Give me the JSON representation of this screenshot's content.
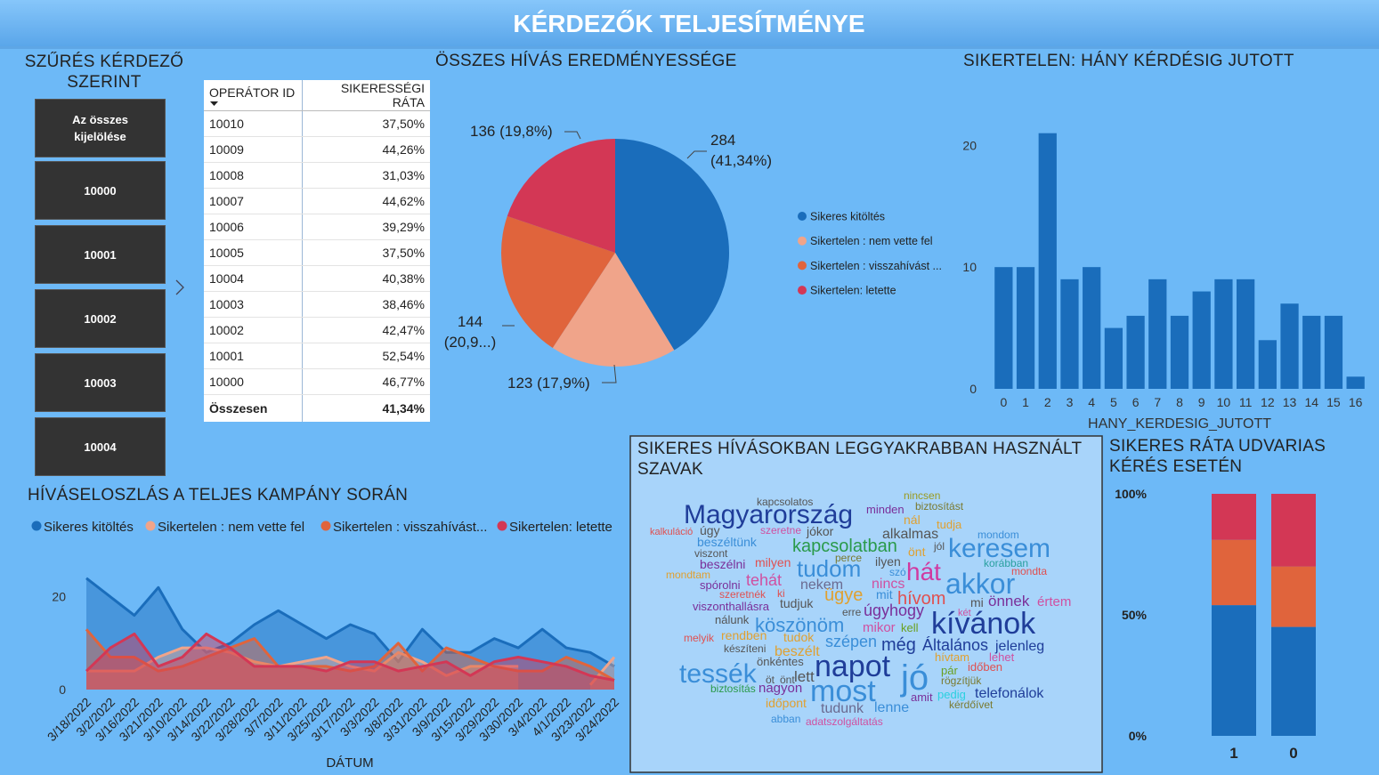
{
  "header": {
    "title": "KÉRDEZŐK TELJESÍTMÉNYE"
  },
  "slicer": {
    "title": "SZŰRÉS KÉRDEZŐ SZERINT",
    "items": [
      "Az összes kijelölése",
      "10000",
      "10001",
      "10002",
      "10003",
      "10004"
    ]
  },
  "table": {
    "columns": [
      "OPERÁTOR ID",
      "SIKERESSÉGI RÁTA"
    ],
    "rows": [
      [
        "10010",
        "37,50%"
      ],
      [
        "10009",
        "44,26%"
      ],
      [
        "10008",
        "31,03%"
      ],
      [
        "10007",
        "44,62%"
      ],
      [
        "10006",
        "39,29%"
      ],
      [
        "10005",
        "37,50%"
      ],
      [
        "10004",
        "40,38%"
      ],
      [
        "10003",
        "38,46%"
      ],
      [
        "10002",
        "42,47%"
      ],
      [
        "10001",
        "52,54%"
      ],
      [
        "10000",
        "46,77%"
      ]
    ],
    "total": [
      "Összesen",
      "41,34%"
    ]
  },
  "wordcloud": {
    "title": "SIKERES HÍVÁSOKBAN LEGGYAKRABBAN HASZNÁLT SZAVAK",
    "words": [
      "kapcsolatos",
      "nincsen",
      "biztosítást",
      "Magyarország",
      "minden",
      "tudja",
      "kalkuláció",
      "úgy",
      "nál",
      "mondom",
      "szeretne",
      "jókor",
      "alkalmas",
      "beszéltünk",
      "jól",
      "keresem",
      "kapcsolatban",
      "önt",
      "viszont",
      "perce",
      "ilyen",
      "korábban",
      "beszélni",
      "milyen",
      "tudom",
      "hát",
      "szó",
      "mondta",
      "mondtam",
      "tehát",
      "nekem",
      "nincs",
      "akkor",
      "spórolni",
      "szeretnék",
      "ki",
      "ügye",
      "mit",
      "hívom",
      "önnek",
      "értem",
      "mi",
      "viszonthallásra",
      "tudjuk",
      "két",
      "erre",
      "úgyhogy",
      "kívánok",
      "nálunk",
      "köszönöm",
      "mikor",
      "kell",
      "rendben",
      "tudok",
      "melyik",
      "szépen",
      "még",
      "Általános",
      "jelenleg",
      "készíteni",
      "beszélt",
      "önkéntes",
      "lett",
      "napot",
      "jó",
      "hívtam",
      "lehet",
      "tessék",
      "pár",
      "időben",
      "rögzítjük",
      "öt",
      "önt",
      "most",
      "biztosítás",
      "nagyon",
      "telefonálok",
      "amit",
      "pedig",
      "időpont",
      "tudunk",
      "lenne",
      "kérdőívet",
      "abban",
      "adatszolgáltatás"
    ]
  },
  "chart_data": [
    {
      "type": "pie",
      "title": "ÖSSZES HÍVÁS EREDMÉNYESSÉGE",
      "categories": [
        "Sikeres kitöltés",
        "Sikertelen : nem vette fel",
        "Sikertelen : visszahívást ...",
        "Sikertelen: letette"
      ],
      "values": [
        284,
        123,
        144,
        136
      ],
      "value_labels": [
        "284 (41,34%)",
        "123 (17,9%)",
        "144 (20,9...)",
        "136 (19,8%)"
      ],
      "colors": [
        "#1a6dbb",
        "#f0a48a",
        "#e0643c",
        "#d33755"
      ]
    },
    {
      "type": "bar",
      "title": "SIKERTELEN: HÁNY KÉRDÉSIG JUTOTT",
      "xlabel": "HANY_KERDESIG_JUTOTT",
      "categories": [
        0,
        1,
        2,
        3,
        4,
        5,
        6,
        7,
        8,
        9,
        10,
        11,
        12,
        13,
        14,
        15,
        16
      ],
      "values": [
        10,
        10,
        21,
        9,
        10,
        5,
        6,
        9,
        6,
        8,
        9,
        9,
        4,
        7,
        6,
        6,
        1
      ],
      "color": "#1a6dbb",
      "ylim": [
        0,
        22
      ],
      "yticks": [
        0,
        10,
        20
      ]
    },
    {
      "type": "area",
      "title": "HÍVÁSELOSZLÁS A TELJES KAMPÁNY SORÁN",
      "xlabel": "DÁTUM",
      "categories": [
        "3/18/2022",
        "3/2/2022",
        "3/16/2022",
        "3/21/2022",
        "3/10/2022",
        "3/14/2022",
        "3/22/2022",
        "3/28/2022",
        "3/7/2022",
        "3/11/2022",
        "3/25/2022",
        "3/17/2022",
        "3/3/2022",
        "3/8/2022",
        "3/31/2022",
        "3/9/2022",
        "3/15/2022",
        "3/29/2022",
        "3/30/2022",
        "3/4/2022",
        "4/1/2022",
        "3/23/2022",
        "3/24/2022"
      ],
      "series": [
        {
          "name": "Sikeres kitöltés",
          "color": "#1a6dbb",
          "values": [
            24,
            20,
            16,
            22,
            13,
            8,
            10,
            14,
            17,
            14,
            11,
            14,
            12,
            6,
            13,
            8,
            8,
            11,
            9,
            13,
            9,
            8,
            5
          ]
        },
        {
          "name": "Sikertelen : nem vette fel",
          "color": "#f0a48a",
          "values": [
            4,
            4,
            4,
            7,
            9,
            9,
            8,
            6,
            5,
            6,
            7,
            5,
            4,
            8,
            6,
            3,
            5,
            5,
            5,
            null,
            null,
            1,
            7
          ]
        },
        {
          "name": "Sikertelen : visszahívást...",
          "color": "#e0643c",
          "values": [
            13,
            7,
            7,
            4,
            5,
            7,
            9,
            11,
            5,
            5,
            5,
            4,
            5,
            10,
            4,
            9,
            7,
            5,
            4,
            4,
            7,
            5,
            2
          ]
        },
        {
          "name": "Sikertelen: letette",
          "color": "#d33755",
          "values": [
            4,
            9,
            12,
            5,
            7,
            12,
            9,
            5,
            5,
            5,
            4,
            6,
            6,
            4,
            5,
            6,
            3,
            6,
            7,
            6,
            5,
            3,
            2
          ]
        }
      ],
      "ylim": [
        0,
        28
      ],
      "yticks": [
        0,
        20
      ]
    },
    {
      "type": "stacked-bar",
      "title": "SIKERES RÁTA UDVARIAS KÉRÉS ESETÉN",
      "categories": [
        "1",
        "0"
      ],
      "series": [
        {
          "color": "#1a6dbb",
          "values": [
            54,
            45
          ]
        },
        {
          "color": "#e0643c",
          "values": [
            27,
            25
          ]
        },
        {
          "color": "#d33755",
          "values": [
            19,
            30
          ]
        }
      ],
      "ylim": [
        0,
        100
      ],
      "yticks": [
        {
          "value": 0,
          "label": "0%"
        },
        {
          "value": 50,
          "label": "50%"
        },
        {
          "value": 100,
          "label": "100%"
        }
      ]
    }
  ]
}
